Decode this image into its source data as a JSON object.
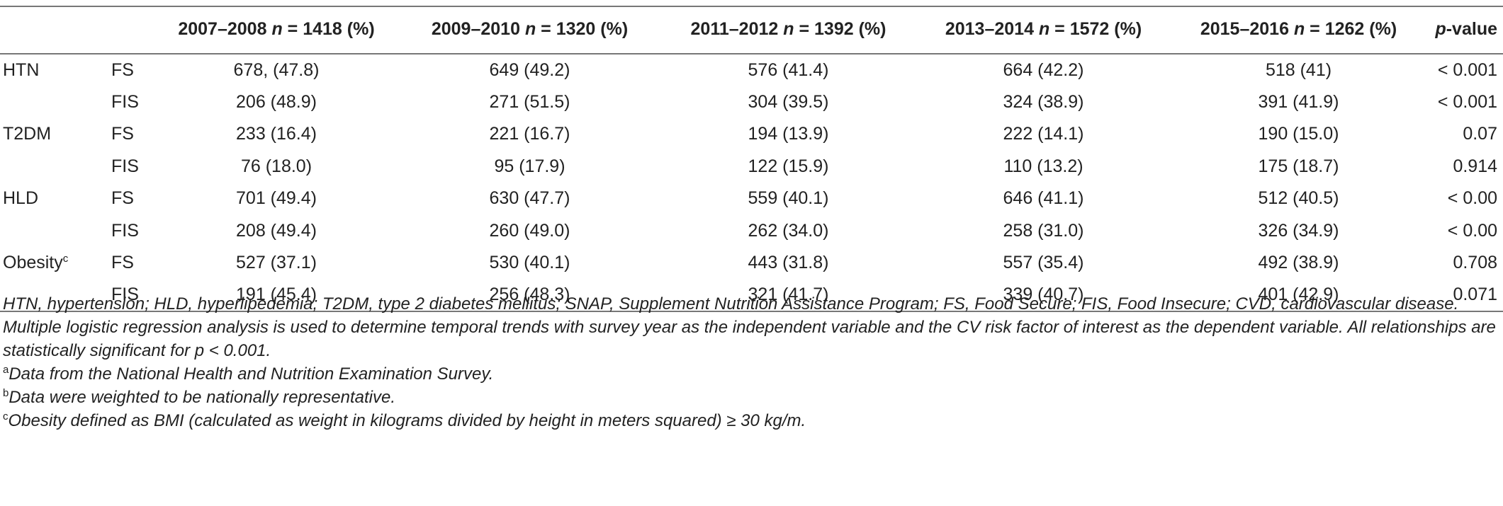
{
  "table": {
    "headers": [
      {
        "period": "",
        "n_label": "",
        "n_value": ""
      },
      {
        "period": "",
        "n_label": "",
        "n_value": ""
      },
      {
        "period": "2007–2008",
        "n_label": "n",
        "n_value": " = 1418 (%)"
      },
      {
        "period": "2009–2010",
        "n_label": "n",
        "n_value": " = 1320 (%)"
      },
      {
        "period": "2011–2012",
        "n_label": "n",
        "n_value": " = 1392 (%)"
      },
      {
        "period": "2013–2014",
        "n_label": "n",
        "n_value": " = 1572 (%)"
      },
      {
        "period": "2015–2016",
        "n_label": "n",
        "n_value": " = 1262 (%)"
      }
    ],
    "p_header": {
      "p": "p",
      "rest": "-value"
    },
    "rows": [
      {
        "risk": "HTN",
        "sup": "",
        "group": "FS",
        "cells": [
          "678, (47.8)",
          "649 (49.2)",
          "576 (41.4)",
          "664 (42.2)",
          "518 (41)"
        ],
        "p": "< 0.001"
      },
      {
        "risk": "",
        "sup": "",
        "group": "FIS",
        "cells": [
          "206 (48.9)",
          "271 (51.5)",
          "304 (39.5)",
          "324 (38.9)",
          "391 (41.9)"
        ],
        "p": "< 0.001"
      },
      {
        "risk": "T2DM",
        "sup": "",
        "group": "FS",
        "cells": [
          "233 (16.4)",
          "221 (16.7)",
          "194 (13.9)",
          "222 (14.1)",
          "190 (15.0)"
        ],
        "p": "0.07"
      },
      {
        "risk": "",
        "sup": "",
        "group": "FIS",
        "cells": [
          "76 (18.0)",
          "95 (17.9)",
          "122 (15.9)",
          "110 (13.2)",
          "175 (18.7)"
        ],
        "p": "0.914"
      },
      {
        "risk": "HLD",
        "sup": "",
        "group": "FS",
        "cells": [
          "701 (49.4)",
          "630 (47.7)",
          "559 (40.1)",
          "646 (41.1)",
          "512 (40.5)"
        ],
        "p": "< 0.00"
      },
      {
        "risk": "",
        "sup": "",
        "group": "FIS",
        "cells": [
          "208 (49.4)",
          "260 (49.0)",
          "262 (34.0)",
          "258 (31.0)",
          "326 (34.9)"
        ],
        "p": "< 0.00"
      },
      {
        "risk": "Obesity",
        "sup": "c",
        "group": "FS",
        "cells": [
          "527 (37.1)",
          "530 (40.1)",
          "443 (31.8)",
          "557 (35.4)",
          "492 (38.9)"
        ],
        "p": "0.708"
      },
      {
        "risk": "",
        "sup": "",
        "group": "FIS",
        "cells": [
          "191 (45.4)",
          "256 (48.3)",
          "321 (41.7)",
          "339 (40.7)",
          "401 (42.9)"
        ],
        "p": "0.071"
      }
    ]
  },
  "notes": {
    "abbrev": "HTN, hypertension; HLD, hyperlipedemia; T2DM, type 2 diabetes mellitus; SNAP, Supplement Nutrition Assistance Program; FS, Food Secure; FIS, Food Insecure; CVD, cardiovascular disease. Multiple logistic regression analysis is used to determine temporal trends with survey year as the independent variable and the CV risk factor of interest as the dependent variable. All relationships are statistically significant for p < 0.001.",
    "footnotes": [
      {
        "mark": "a",
        "text": "Data from the National Health and Nutrition Examination Survey."
      },
      {
        "mark": "b",
        "text": "Data were weighted to be nationally representative."
      },
      {
        "mark": "c",
        "text": "Obesity defined as BMI (calculated as weight in kilograms divided by height in meters squared) ≥ 30 kg/m."
      }
    ]
  }
}
